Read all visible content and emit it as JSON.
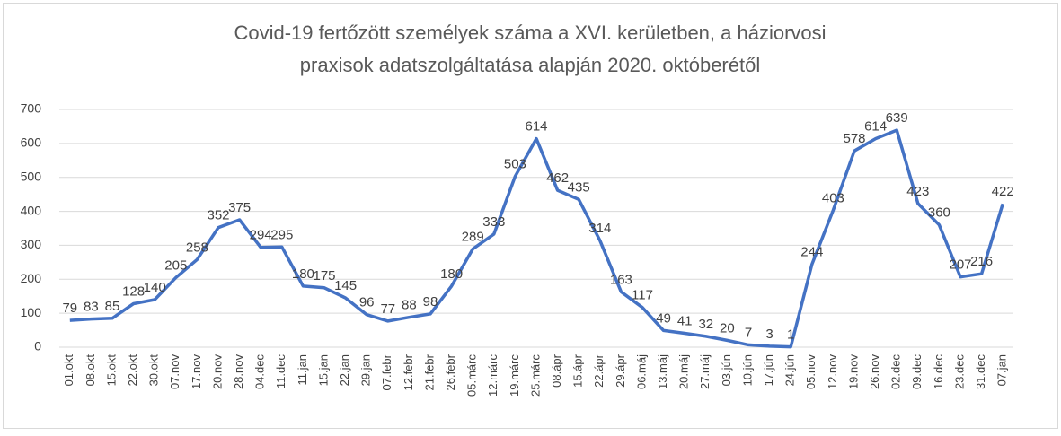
{
  "chart_data": {
    "type": "line",
    "title": [
      "Covid-19 fertőzött személyek száma a XVI. kerületben, a háziorvosi",
      "praxisok adatszolgáltatása alapján 2020. októberétől"
    ],
    "categories": [
      "01.okt",
      "08.okt",
      "15.okt",
      "22.okt",
      "30.okt",
      "07.nov",
      "17.nov",
      "20.nov",
      "28.nov",
      "04.dec",
      "11.dec",
      "11.jan",
      "15.jan",
      "22.jan",
      "29.jan",
      "07.febr",
      "12.febr",
      "21.febr",
      "26.febr",
      "05.márc",
      "12.márc",
      "19.márc",
      "25.márc",
      "08.ápr",
      "15.ápr",
      "22.ápr",
      "29.ápr",
      "06.máj",
      "13.máj",
      "20.máj",
      "27.máj",
      "03.jún",
      "10.jún",
      "17.jún",
      "24.jún",
      "05.nov",
      "12.nov",
      "19.nov",
      "26.nov",
      "02.dec",
      "09.dec",
      "16.dec",
      "23.dec",
      "31.dec",
      "07.jan"
    ],
    "values": [
      79,
      83,
      85,
      128,
      140,
      205,
      258,
      352,
      375,
      294,
      295,
      180,
      175,
      145,
      96,
      77,
      88,
      98,
      180,
      289,
      333,
      503,
      614,
      462,
      435,
      314,
      163,
      117,
      49,
      41,
      32,
      20,
      7,
      3,
      1,
      244,
      403,
      578,
      614,
      639,
      423,
      360,
      207,
      216,
      422
    ],
    "color": "#4472c4",
    "ylim": [
      0,
      700
    ],
    "yticks": [
      0,
      100,
      200,
      300,
      400,
      500,
      600,
      700
    ],
    "grid": true
  }
}
